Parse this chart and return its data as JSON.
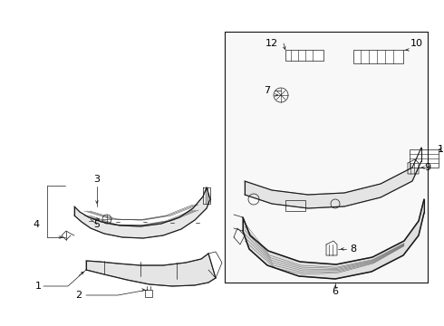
{
  "bg_color": "#ffffff",
  "fig_width": 4.9,
  "fig_height": 3.6,
  "dpi": 100,
  "line_color": "#1a1a1a",
  "gray_fill": "#e8e8e8",
  "panel_fill": "#ebebeb"
}
